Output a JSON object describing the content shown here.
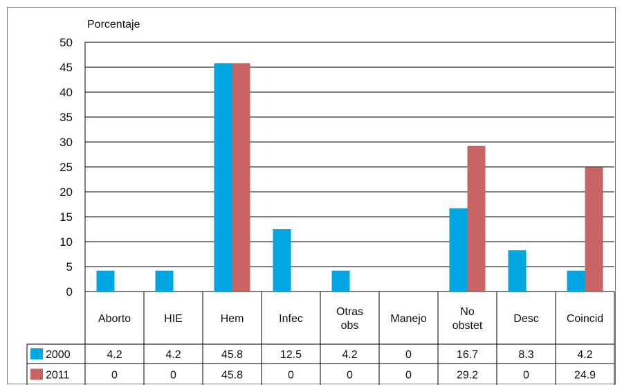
{
  "chart_data": {
    "type": "bar",
    "ylabel": "Porcentaje",
    "ylim": [
      0,
      50
    ],
    "yticks": [
      0,
      5,
      10,
      15,
      20,
      25,
      30,
      35,
      40,
      45,
      50
    ],
    "grid": true,
    "categories": [
      "Aborto",
      "HIE",
      "Hem",
      "Infec",
      "Otras obs",
      "Manejo",
      "No obstet",
      "Desc",
      "Coincid"
    ],
    "category_lines": [
      [
        "Aborto"
      ],
      [
        "HIE"
      ],
      [
        "Hem"
      ],
      [
        "Infec"
      ],
      [
        "Otras",
        "obs"
      ],
      [
        "Manejo"
      ],
      [
        "No",
        "obstet"
      ],
      [
        "Desc"
      ],
      [
        "Coincid"
      ]
    ],
    "series": [
      {
        "name": "2000",
        "color": "#00a6e2",
        "values": [
          4.2,
          4.2,
          45.8,
          12.5,
          4.2,
          0,
          16.7,
          8.3,
          4.2
        ]
      },
      {
        "name": "2011",
        "color": "#c86464",
        "values": [
          0,
          0,
          45.8,
          0,
          0,
          0,
          29.2,
          0,
          24.9
        ]
      }
    ],
    "data_table": {
      "rows": [
        {
          "series": "2000",
          "cells": [
            "4.2",
            "4.2",
            "45.8",
            "12.5",
            "4.2",
            "0",
            "16.7",
            "8.3",
            "4.2"
          ]
        },
        {
          "series": "2011",
          "cells": [
            "0",
            "0",
            "45.8",
            "0",
            "0",
            "0",
            "29.2",
            "0",
            "24.9"
          ]
        }
      ]
    }
  }
}
